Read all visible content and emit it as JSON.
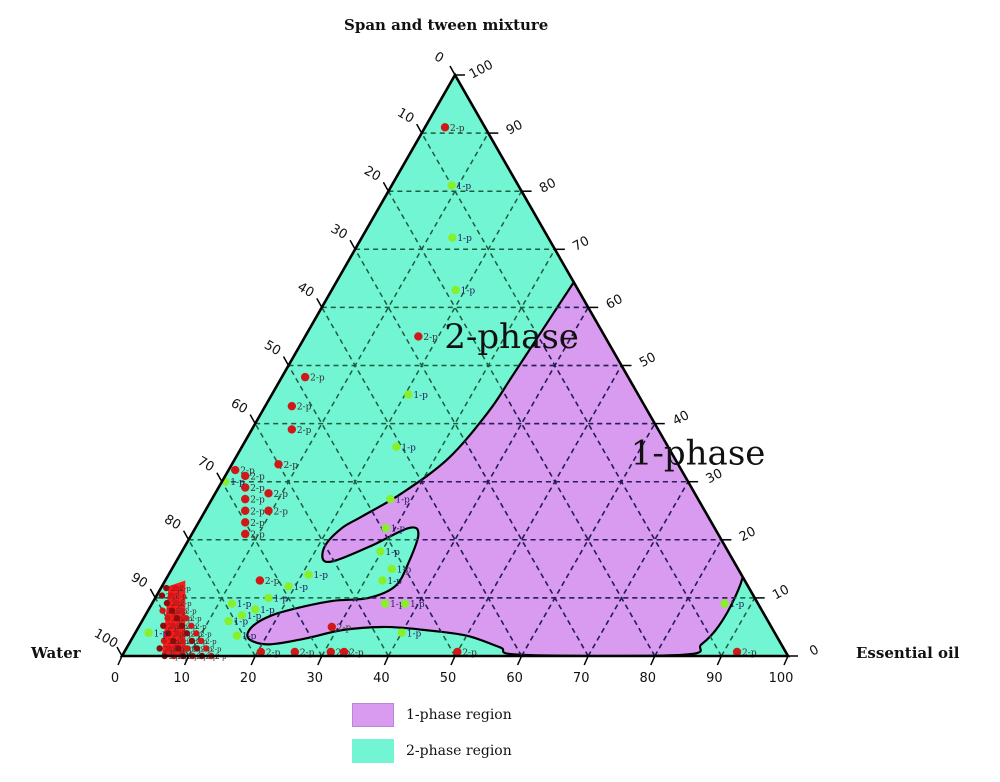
{
  "colors": {
    "two_phase": "#72f5d2",
    "one_phase": "#d99bf0",
    "one_phase_border": "#b987d8",
    "grid_in_two_phase": "#1f5b3f",
    "grid_in_one_phase": "#2b1a5c",
    "outline": "#000000",
    "point_one_phase": "#88f02a",
    "point_two_phase": "#d01818",
    "cluster": "#ff1a1a"
  },
  "chart_data": {
    "type": "ternary-phase-diagram",
    "title": "",
    "axes": {
      "top": {
        "label": "Span and tween mixture",
        "ticks": [
          0,
          10,
          20,
          30,
          40,
          50,
          60,
          70,
          80,
          90,
          100
        ]
      },
      "left_corner": {
        "label": "Water"
      },
      "right_corner": {
        "label": "Essential oil"
      },
      "bottom": {
        "ticks": [
          0,
          10,
          20,
          30,
          40,
          50,
          60,
          70,
          80,
          90,
          100
        ]
      },
      "right_side_ticks": [
        0,
        10,
        20,
        30,
        40,
        50,
        60,
        70,
        80,
        90,
        100
      ],
      "left_side_ticks": [
        0,
        10,
        20,
        30,
        40,
        50,
        60,
        70,
        80,
        90,
        100
      ]
    },
    "grid": true,
    "grid_step": 10,
    "region_labels": [
      {
        "text": "2-phase",
        "oil": 32,
        "surf": 53
      },
      {
        "text": "1-phase",
        "oil": 70,
        "surf": 33
      }
    ],
    "one_phase_boundary": [
      [
        47,
        82
      ],
      [
        43,
        81
      ],
      [
        39,
        78
      ],
      [
        37,
        74
      ],
      [
        36,
        68
      ],
      [
        35.5,
        62
      ],
      [
        35,
        55
      ],
      [
        34.5,
        48
      ],
      [
        34,
        42
      ],
      [
        32,
        34
      ],
      [
        28,
        28
      ],
      [
        24,
        24
      ],
      [
        22,
        22
      ],
      [
        21,
        19
      ],
      [
        22,
        16.5
      ],
      [
        24,
        16.5
      ],
      [
        28,
        19
      ],
      [
        32,
        22
      ],
      [
        34,
        21
      ],
      [
        35,
        16
      ],
      [
        35,
        12
      ],
      [
        32,
        10
      ],
      [
        27,
        9.5
      ],
      [
        23,
        8.5
      ],
      [
        19,
        7
      ],
      [
        17,
        5
      ],
      [
        17.5,
        3
      ],
      [
        21,
        2
      ],
      [
        26,
        3
      ],
      [
        31,
        4.5
      ],
      [
        37,
        5
      ],
      [
        43,
        4.5
      ],
      [
        50,
        3.5
      ],
      [
        56,
        1.5
      ],
      [
        60,
        0.2
      ],
      [
        84,
        0.2
      ],
      [
        86,
        2
      ],
      [
        87,
        5
      ],
      [
        87,
        10
      ],
      [
        86,
        15
      ],
      [
        83,
        22
      ],
      [
        79,
        30
      ],
      [
        75,
        38
      ],
      [
        70,
        46
      ],
      [
        65,
        54
      ],
      [
        60,
        62
      ],
      [
        55,
        70
      ],
      [
        51,
        77
      ],
      [
        49,
        80.5
      ]
    ],
    "points_one_phase": [
      {
        "oil": 9,
        "surf": 81
      },
      {
        "oil": 13.6,
        "surf": 72
      },
      {
        "oil": 18.6,
        "surf": 63
      },
      {
        "oil": 20.5,
        "surf": 45
      },
      {
        "oil": 23.2,
        "surf": 36
      },
      {
        "oil": 26.8,
        "surf": 27
      },
      {
        "oil": 28.6,
        "surf": 22
      },
      {
        "oil": 29.8,
        "surf": 18
      },
      {
        "oil": 33,
        "surf": 15
      },
      {
        "oil": 32.6,
        "surf": 13
      },
      {
        "oil": 35,
        "surf": 9
      },
      {
        "oil": 38,
        "surf": 9
      },
      {
        "oil": 40,
        "surf": 4
      },
      {
        "oil": 86,
        "surf": 9
      },
      {
        "oil": 21,
        "surf": 14
      },
      {
        "oil": 19,
        "surf": 12
      },
      {
        "oil": 17,
        "surf": 10
      },
      {
        "oil": 16,
        "surf": 8
      },
      {
        "oil": 14.5,
        "surf": 7
      },
      {
        "oil": 15.5,
        "surf": 3.5
      },
      {
        "oil": 12,
        "surf": 9
      },
      {
        "oil": 13,
        "surf": 6
      },
      {
        "oil": 2,
        "surf": 4
      },
      {
        "oil": 0.5,
        "surf": 30
      }
    ],
    "points_two_phase": [
      {
        "oil": 3,
        "surf": 91
      },
      {
        "oil": 17,
        "surf": 55
      },
      {
        "oil": 3.5,
        "surf": 48
      },
      {
        "oil": 4,
        "surf": 43
      },
      {
        "oil": 6,
        "surf": 39
      },
      {
        "oil": 7,
        "surf": 33
      },
      {
        "oil": 8,
        "surf": 28
      },
      {
        "oil": 9.5,
        "surf": 25
      },
      {
        "oil": 1,
        "surf": 32
      },
      {
        "oil": 3,
        "surf": 31
      },
      {
        "oil": 4,
        "surf": 29
      },
      {
        "oil": 5,
        "surf": 27
      },
      {
        "oil": 6,
        "surf": 25
      },
      {
        "oil": 7,
        "surf": 23
      },
      {
        "oil": 8,
        "surf": 21
      },
      {
        "oil": 14.2,
        "surf": 13
      },
      {
        "oil": 29,
        "surf": 5
      },
      {
        "oil": 20.5,
        "surf": 0.7
      },
      {
        "oil": 25.6,
        "surf": 0.7
      },
      {
        "oil": 31,
        "surf": 0.7
      },
      {
        "oil": 33,
        "surf": 0.7
      },
      {
        "oil": 50,
        "surf": 0.7
      },
      {
        "oil": 92,
        "surf": 0.7
      }
    ],
    "legend": [
      {
        "label": "1-phase region",
        "color": "#d99bf0"
      },
      {
        "label": "2-phase region",
        "color": "#72f5d2"
      }
    ]
  },
  "legend": {
    "items": [
      {
        "label": "1-phase region"
      },
      {
        "label": "2-phase region"
      }
    ]
  }
}
